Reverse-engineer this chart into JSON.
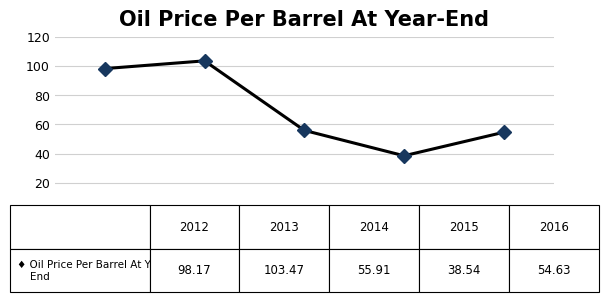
{
  "title": "Oil Price Per Barrel At Year-End",
  "years": [
    2012,
    2013,
    2014,
    2015,
    2016
  ],
  "values": [
    98.17,
    103.47,
    55.91,
    38.54,
    54.63
  ],
  "line_color": "#000000",
  "marker_color": "#17375E",
  "marker_style": "D",
  "marker_size": 7,
  "ylim": [
    0,
    120
  ],
  "yticks": [
    0,
    20,
    40,
    60,
    80,
    100,
    120
  ],
  "title_fontsize": 15,
  "title_fontweight": "bold",
  "background_color": "#FFFFFF",
  "legend_label": "Oil Price Per Barrel At Year-\nEnd",
  "table_values": [
    "98.17",
    "103.47",
    "55.91",
    "38.54",
    "54.63"
  ],
  "grid_color": "#D0D0D0",
  "axis_font_size": 9,
  "table_font_size": 8.5
}
